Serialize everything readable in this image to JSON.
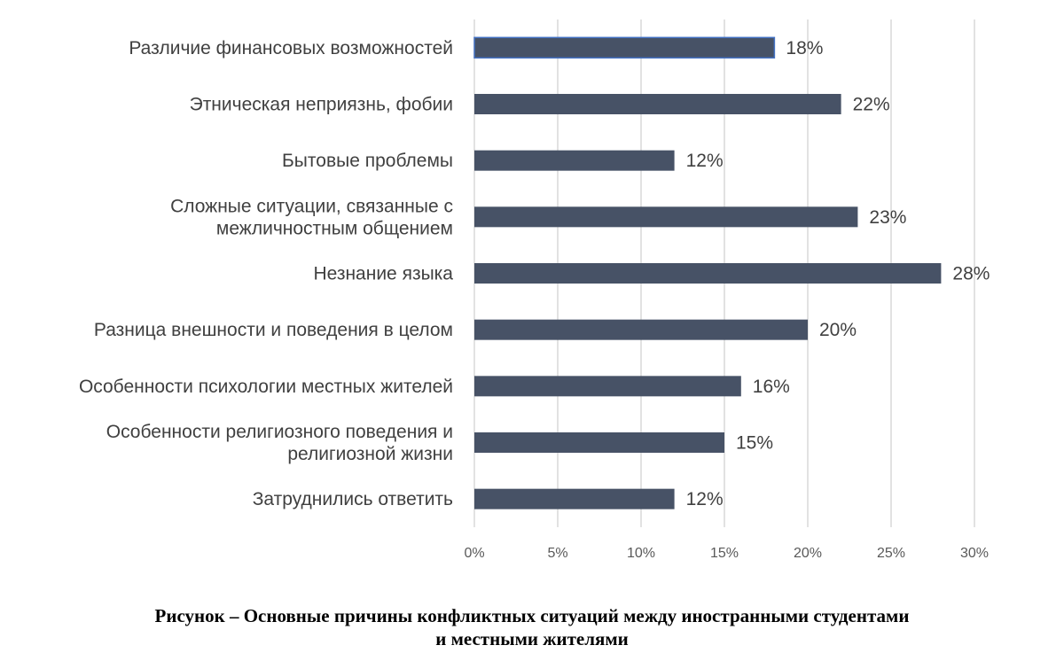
{
  "colors": {
    "bar": "#475266",
    "first_bar_outline": "#4472c4",
    "grid": "#d9d9d9",
    "text": "#404040"
  },
  "chart_data": {
    "type": "bar",
    "orientation": "horizontal",
    "categories": [
      [
        "Различие финансовых возможностей"
      ],
      [
        "Этническая неприязнь, фобии"
      ],
      [
        "Бытовые проблемы"
      ],
      [
        "Сложные ситуации, связанные с",
        "межличностным общением"
      ],
      [
        "Незнание языка"
      ],
      [
        "Разница внешности и поведения в целом"
      ],
      [
        "Особенности психологии местных жителей"
      ],
      [
        "Особенности религиозного поведения и",
        "религиозной жизни"
      ],
      [
        "Затруднились ответить"
      ]
    ],
    "values": [
      18,
      22,
      12,
      23,
      28,
      20,
      16,
      15,
      12
    ],
    "value_labels": [
      "18%",
      "22%",
      "12%",
      "23%",
      "28%",
      "20%",
      "16%",
      "15%",
      "12%"
    ],
    "xlim": [
      0,
      30
    ],
    "x_ticks": [
      0,
      5,
      10,
      15,
      20,
      25,
      30
    ],
    "x_tick_labels": [
      "0%",
      "5%",
      "10%",
      "15%",
      "20%",
      "25%",
      "30%"
    ],
    "grid": true,
    "legend": "none"
  },
  "caption": {
    "line1": "Рисунок – Основные причины конфликтных ситуаций между иностранными студентами",
    "line2": "и местными жителями"
  }
}
